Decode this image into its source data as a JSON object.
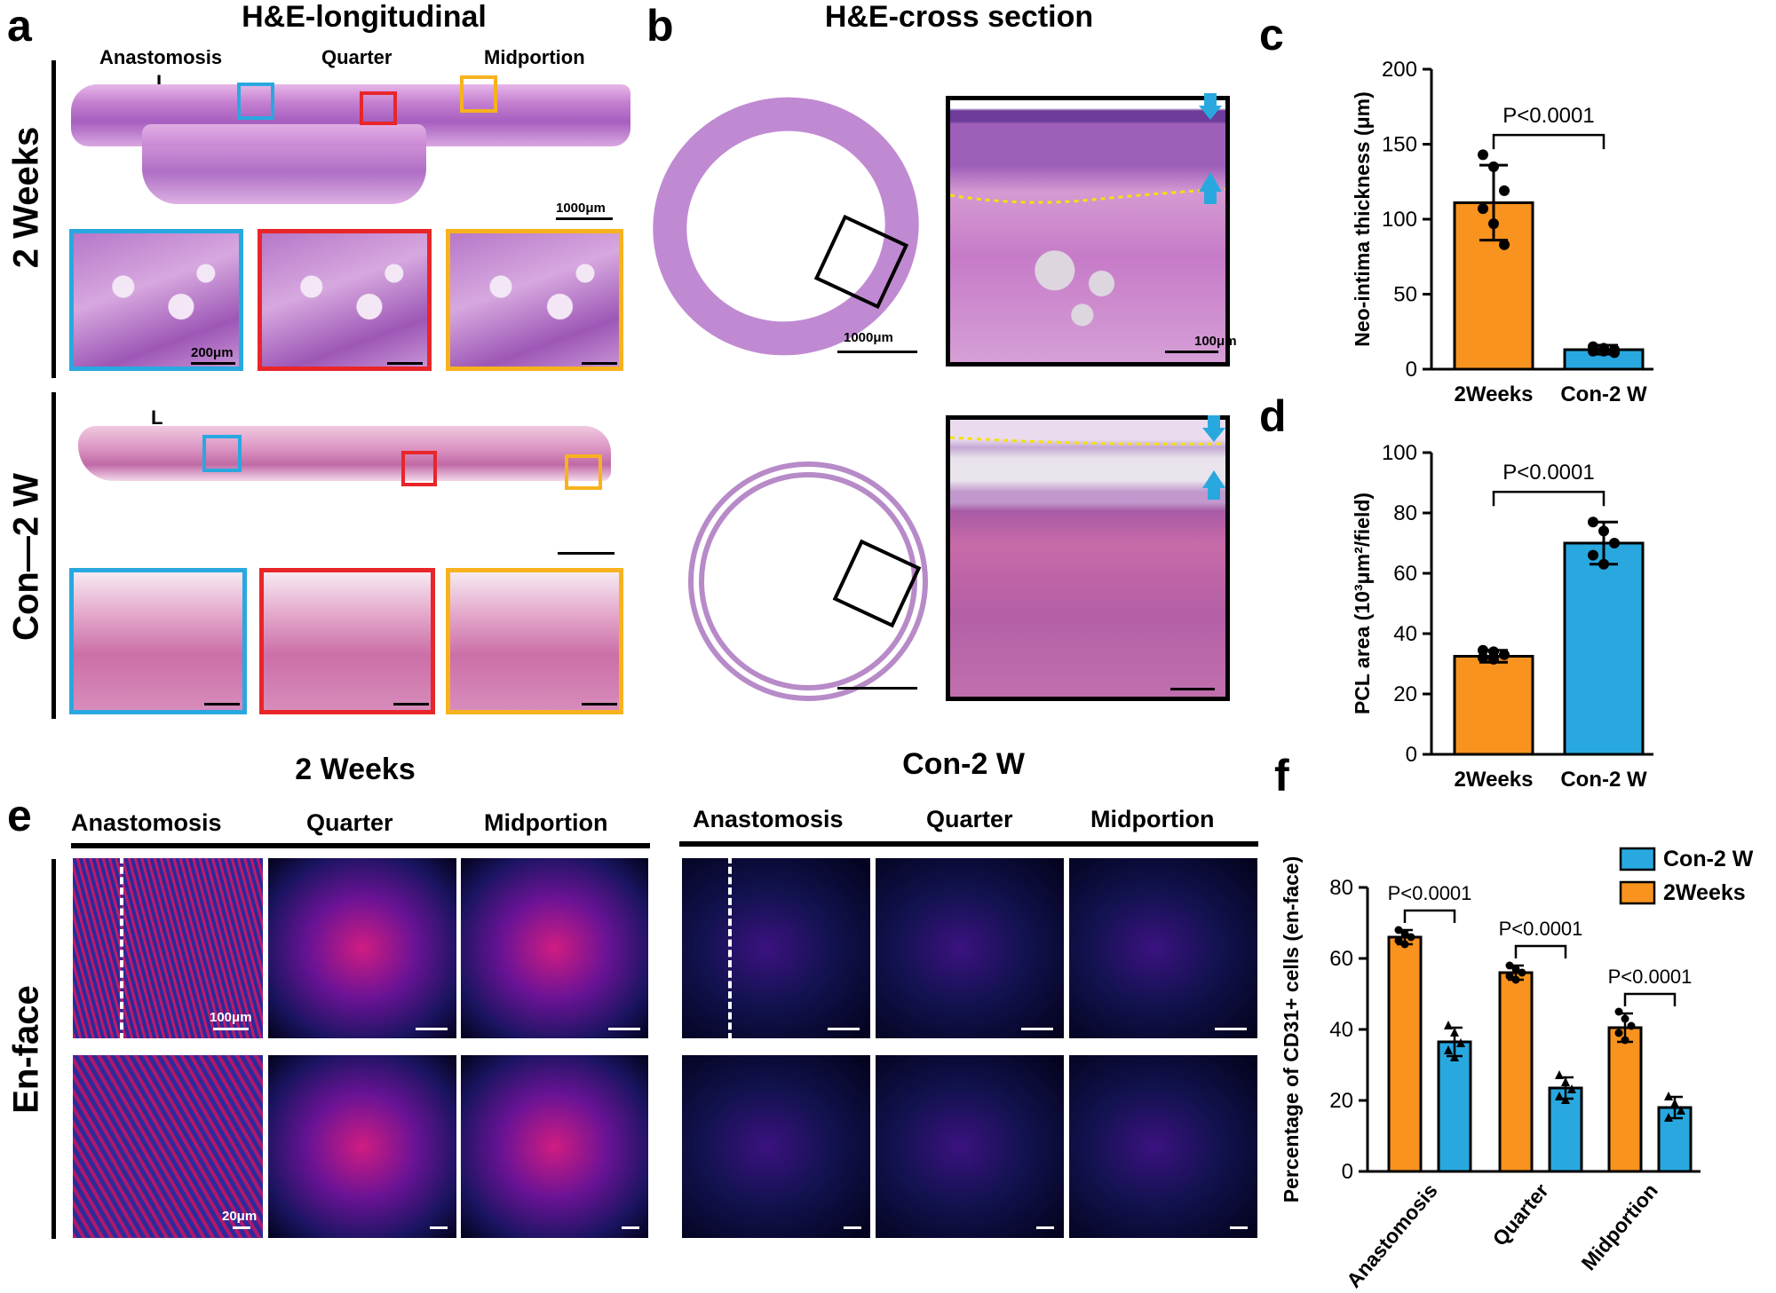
{
  "panels": {
    "a": "a",
    "b": "b",
    "c": "c",
    "d": "d",
    "e": "e",
    "f": "f"
  },
  "panel_a": {
    "title": "H&E-longitudinal",
    "labels": [
      "Anastomosis",
      "Quarter",
      "Midportion"
    ],
    "lumen_label": "L",
    "row1": "2 Weeks",
    "row2": "Con—2 W",
    "scale_1000": "1000μm",
    "scale_200": "200μm"
  },
  "panel_b": {
    "title": "H&E-cross section",
    "scale_1000": "1000μm",
    "scale_100": "100μm"
  },
  "panel_e": {
    "group1": "2 Weeks",
    "group2": "Con-2 W",
    "cols": [
      "Anastomosis",
      "Quarter",
      "Midportion"
    ],
    "row_label": "En-face",
    "scale_100": "100μm",
    "scale_20": "20μm"
  },
  "colors": {
    "orange": "#F7931E",
    "blue": "#29A8E0",
    "cyan_box": "#29A8E0",
    "red_box": "#E8262A",
    "yellow_box": "#F7B21E",
    "marker_yellow": "#F5E10A"
  },
  "chart_data": [
    {
      "id": "c",
      "type": "bar",
      "ylabel": "Neo-intima thickness (μm)",
      "categories": [
        "2Weeks",
        "Con-2 W"
      ],
      "values": [
        111,
        13
      ],
      "errors": [
        25,
        3
      ],
      "points": [
        [
          143,
          135,
          119,
          107,
          97,
          83
        ],
        [
          15,
          14,
          13,
          12,
          12,
          11
        ]
      ],
      "ylim": [
        0,
        200
      ],
      "yticks": [
        0,
        50,
        100,
        150,
        200
      ],
      "annotation": "P<0.0001"
    },
    {
      "id": "d",
      "type": "bar",
      "ylabel": "PCL area (10³μm²/field)",
      "categories": [
        "2Weeks",
        "Con-2 W"
      ],
      "values": [
        32.5,
        70
      ],
      "errors": [
        2,
        7
      ],
      "points": [
        [
          34.5,
          34,
          33,
          32,
          31.5
        ],
        [
          77,
          74,
          70,
          66,
          63
        ]
      ],
      "ylim": [
        0,
        100
      ],
      "yticks": [
        0,
        20,
        40,
        60,
        80,
        100
      ],
      "annotation": "P<0.0001"
    },
    {
      "id": "f",
      "type": "bar",
      "ylabel": "Percentage of CD31+ cells (en-face)",
      "categories": [
        "Anastomosis",
        "Quarter",
        "Midportion"
      ],
      "series": [
        {
          "name": "2Weeks",
          "values": [
            66,
            56,
            40.5
          ],
          "errors": [
            2,
            2,
            4
          ],
          "points": [
            [
              68,
              67,
              66,
              65,
              64
            ],
            [
              58,
              57,
              56,
              55,
              54
            ],
            [
              45,
              43,
              41,
              39,
              37
            ]
          ]
        },
        {
          "name": "Con-2 W",
          "values": [
            36.5,
            23.5,
            18
          ],
          "errors": [
            4,
            3,
            3
          ],
          "points": [
            [
              41,
              39,
              36,
              34,
              32
            ],
            [
              27,
              25,
              23,
              21,
              20
            ],
            [
              21,
              19,
              17,
              15
            ]
          ]
        }
      ],
      "ylim": [
        0,
        80
      ],
      "yticks": [
        0,
        20,
        40,
        60,
        80
      ],
      "annotations": [
        "P<0.0001",
        "P<0.0001",
        "P<0.0001"
      ],
      "legend": [
        "Con-2 W",
        "2Weeks"
      ]
    }
  ]
}
